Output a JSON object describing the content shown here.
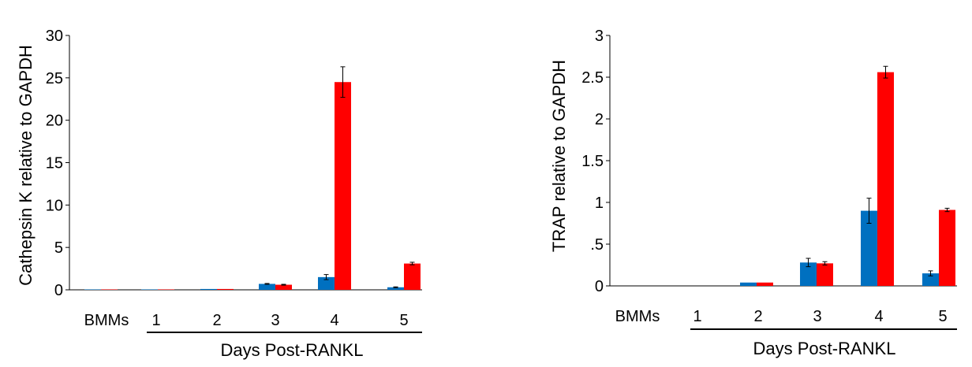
{
  "colors": {
    "series1": "#0070c0",
    "series2": "#ff0000",
    "axis": "#000000"
  },
  "chart_data": [
    {
      "type": "bar",
      "title": "",
      "ylabel": "Cathepsin K relative to GAPDH",
      "xlabel": "Days Post-RANKL",
      "categories": [
        "BMMs",
        "1",
        "2",
        "3",
        "4",
        "5"
      ],
      "ylim": [
        0,
        30
      ],
      "yticks": [
        "0",
        "5",
        "10",
        "15",
        "20",
        "25",
        "30"
      ],
      "ytick_values": [
        0,
        5,
        10,
        15,
        20,
        25,
        30
      ],
      "grid": false,
      "series": [
        {
          "values": [
            0.05,
            0.05,
            0.1,
            0.7,
            1.5,
            0.3
          ],
          "errors": [
            0,
            0,
            0,
            0.05,
            0.3,
            0.05
          ]
        },
        {
          "values": [
            0.05,
            0.05,
            0.1,
            0.6,
            24.5,
            3.1
          ],
          "errors": [
            0,
            0,
            0,
            0.05,
            1.8,
            0.15
          ]
        }
      ]
    },
    {
      "type": "bar",
      "title": "",
      "ylabel": "TRAP relative to GAPDH",
      "xlabel": "Days Post-RANKL",
      "categories": [
        "BMMs",
        "1",
        "2",
        "3",
        "4",
        "5"
      ],
      "ylim": [
        0,
        3
      ],
      "yticks": [
        "0",
        ".5",
        "1",
        "1.5",
        "2",
        "2.5",
        "3"
      ],
      "ytick_values": [
        0,
        0.5,
        1,
        1.5,
        2,
        2.5,
        3
      ],
      "grid": false,
      "series": [
        {
          "values": [
            0,
            0,
            0.04,
            0.28,
            0.9,
            0.15
          ],
          "errors": [
            0,
            0,
            0,
            0.05,
            0.15,
            0.03
          ]
        },
        {
          "values": [
            0,
            0,
            0.04,
            0.27,
            2.56,
            0.91
          ],
          "errors": [
            0,
            0,
            0,
            0.02,
            0.07,
            0.02
          ]
        }
      ]
    }
  ]
}
